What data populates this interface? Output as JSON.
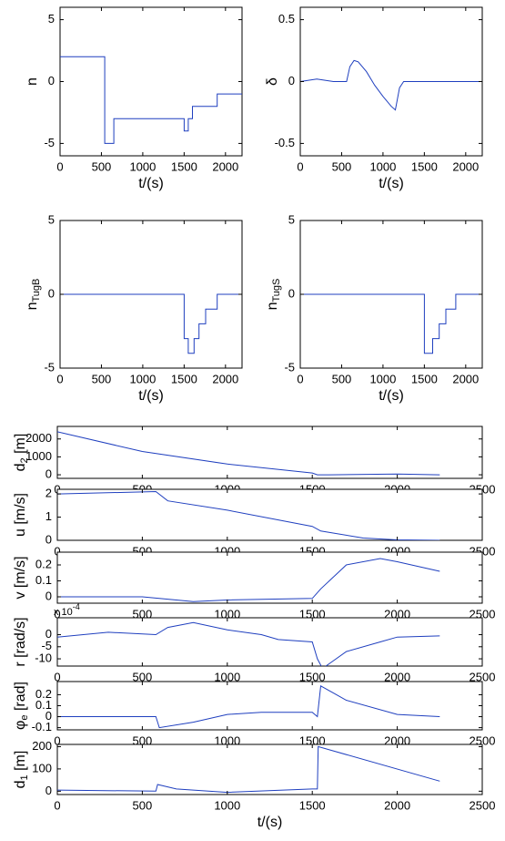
{
  "chart_data": [
    {
      "type": "line",
      "ylabel": "n",
      "xlabel": "t/(s)",
      "color": "#1f3fbf",
      "x": [
        0,
        540,
        540,
        650,
        650,
        1500,
        1500,
        1550,
        1550,
        1600,
        1600,
        1900,
        1900,
        2200
      ],
      "values": [
        2,
        2,
        -5,
        -5,
        -3,
        -3,
        -4,
        -4,
        -3,
        -3,
        -2,
        -2,
        -1,
        -1
      ],
      "xlim": [
        0,
        2200
      ],
      "xticks": [
        0,
        500,
        1000,
        1500,
        2000
      ],
      "ylim": [
        -6,
        6
      ],
      "yticks": [
        -5,
        0,
        5
      ]
    },
    {
      "type": "line",
      "ylabel": "δ",
      "xlabel": "t/(s)",
      "color": "#1f3fbf",
      "x": [
        0,
        100,
        200,
        300,
        400,
        560,
        600,
        650,
        700,
        800,
        900,
        1000,
        1100,
        1150,
        1200,
        1250,
        2200
      ],
      "values": [
        0,
        0.01,
        0.02,
        0.01,
        0,
        0,
        0.12,
        0.17,
        0.16,
        0.08,
        -0.03,
        -0.12,
        -0.2,
        -0.23,
        -0.05,
        0,
        0
      ],
      "xlim": [
        0,
        2200
      ],
      "xticks": [
        0,
        500,
        1000,
        1500,
        2000
      ],
      "ylim": [
        -0.6,
        0.6
      ],
      "yticks": [
        -0.5,
        0,
        0.5
      ]
    },
    {
      "type": "line",
      "ylabel": {
        "base": "n",
        "sub": "TugB"
      },
      "xlabel": "t/(s)",
      "color": "#1f3fbf",
      "x": [
        0,
        1500,
        1500,
        1550,
        1550,
        1620,
        1620,
        1680,
        1680,
        1760,
        1760,
        1900,
        1900,
        2200
      ],
      "values": [
        0,
        0,
        -3,
        -3,
        -4,
        -4,
        -3,
        -3,
        -2,
        -2,
        -1,
        -1,
        0,
        0
      ],
      "xlim": [
        0,
        2200
      ],
      "xticks": [
        0,
        500,
        1000,
        1500,
        2000
      ],
      "ylim": [
        -5,
        5
      ],
      "yticks": [
        -5,
        0,
        5
      ]
    },
    {
      "type": "line",
      "ylabel": {
        "base": "n",
        "sub": "TugS"
      },
      "xlabel": "t/(s)",
      "color": "#1f3fbf",
      "x": [
        0,
        1500,
        1500,
        1600,
        1600,
        1680,
        1680,
        1760,
        1760,
        1880,
        1880,
        2200
      ],
      "values": [
        0,
        0,
        -4,
        -4,
        -3,
        -3,
        -2,
        -2,
        -1,
        -1,
        0,
        0
      ],
      "xlim": [
        0,
        2200
      ],
      "xticks": [
        0,
        500,
        1000,
        1500,
        2000
      ],
      "ylim": [
        -5,
        5
      ],
      "yticks": [
        -5,
        0,
        5
      ]
    },
    {
      "type": "line",
      "ylabel": {
        "base": "d",
        "sub": "2",
        "rest": " [m]"
      },
      "color": "#1f3fbf",
      "x": [
        0,
        500,
        1000,
        1500,
        1530,
        1600,
        2000,
        2250
      ],
      "values": [
        2400,
        1300,
        600,
        100,
        0,
        0,
        40,
        0
      ],
      "xlim": [
        0,
        2500
      ],
      "xticks": [
        0,
        500,
        1000,
        1500,
        2000,
        2500
      ],
      "ylim": [
        -200,
        2700
      ],
      "yticks": [
        0,
        1000,
        2000
      ]
    },
    {
      "type": "line",
      "ylabel": "u [m/s]",
      "color": "#1f3fbf",
      "x": [
        0,
        580,
        650,
        1000,
        1500,
        1550,
        1800,
        2000,
        2250
      ],
      "values": [
        2.0,
        2.1,
        1.7,
        1.3,
        0.6,
        0.4,
        0.1,
        0.02,
        0
      ],
      "xlim": [
        0,
        2500
      ],
      "xticks": [
        0,
        500,
        1000,
        1500,
        2000,
        2500
      ],
      "ylim": [
        0,
        2.2
      ],
      "yticks": [
        0,
        1,
        2
      ]
    },
    {
      "type": "line",
      "ylabel": "v [m/s]",
      "color": "#1f3fbf",
      "x": [
        0,
        500,
        600,
        800,
        1000,
        1500,
        1550,
        1700,
        1900,
        2000,
        2250
      ],
      "values": [
        0,
        0,
        -0.01,
        -0.03,
        -0.02,
        -0.01,
        0.05,
        0.2,
        0.24,
        0.22,
        0.16
      ],
      "xlim": [
        0,
        2500
      ],
      "xticks": [
        0,
        500,
        1000,
        1500,
        2000,
        2500
      ],
      "ylim": [
        -0.04,
        0.28
      ],
      "yticks": [
        0,
        0.1,
        0.2
      ]
    },
    {
      "type": "line",
      "ylabel": "r [rad/s]",
      "y_exponent": {
        "base": "x 10",
        "sup": "-4"
      },
      "color": "#1f3fbf",
      "x": [
        0,
        300,
        580,
        650,
        800,
        1000,
        1200,
        1300,
        1500,
        1530,
        1560,
        1600,
        1700,
        1900,
        2000,
        2250
      ],
      "values": [
        -1,
        1,
        0,
        3,
        5,
        2,
        0,
        -2,
        -3,
        -10,
        -14,
        -12,
        -7,
        -3,
        -1,
        -0.5
      ],
      "xlim": [
        0,
        2500
      ],
      "xticks": [
        0,
        500,
        1000,
        1500,
        2000,
        2500
      ],
      "ylim": [
        -13,
        7
      ],
      "yticks": [
        -10,
        -5,
        0
      ]
    },
    {
      "type": "line",
      "ylabel": {
        "base": "φ",
        "sub": "e",
        "rest": " [rad]"
      },
      "color": "#1f3fbf",
      "x": [
        0,
        580,
        600,
        800,
        1000,
        1200,
        1500,
        1530,
        1550,
        1700,
        2000,
        2250
      ],
      "values": [
        0,
        0,
        -0.1,
        -0.05,
        0.02,
        0.04,
        0.04,
        0,
        0.28,
        0.15,
        0.02,
        0
      ],
      "xlim": [
        0,
        2500
      ],
      "xticks": [
        0,
        500,
        1000,
        1500,
        2000,
        2500
      ],
      "ylim": [
        -0.12,
        0.32
      ],
      "yticks": [
        -0.1,
        0,
        0.1,
        0.2
      ]
    },
    {
      "type": "line",
      "ylabel": {
        "base": "d",
        "sub": "1",
        "rest": " [m]"
      },
      "xlabel": "t/(s)",
      "color": "#1f3fbf",
      "x": [
        0,
        580,
        590,
        700,
        1000,
        1500,
        1530,
        1535,
        2250
      ],
      "values": [
        5,
        0,
        30,
        10,
        -5,
        10,
        10,
        200,
        45
      ],
      "xlim": [
        0,
        2500
      ],
      "xticks": [
        0,
        500,
        1000,
        1500,
        2000,
        2500
      ],
      "ylim": [
        -15,
        210
      ],
      "yticks": [
        0,
        100,
        200
      ]
    }
  ]
}
